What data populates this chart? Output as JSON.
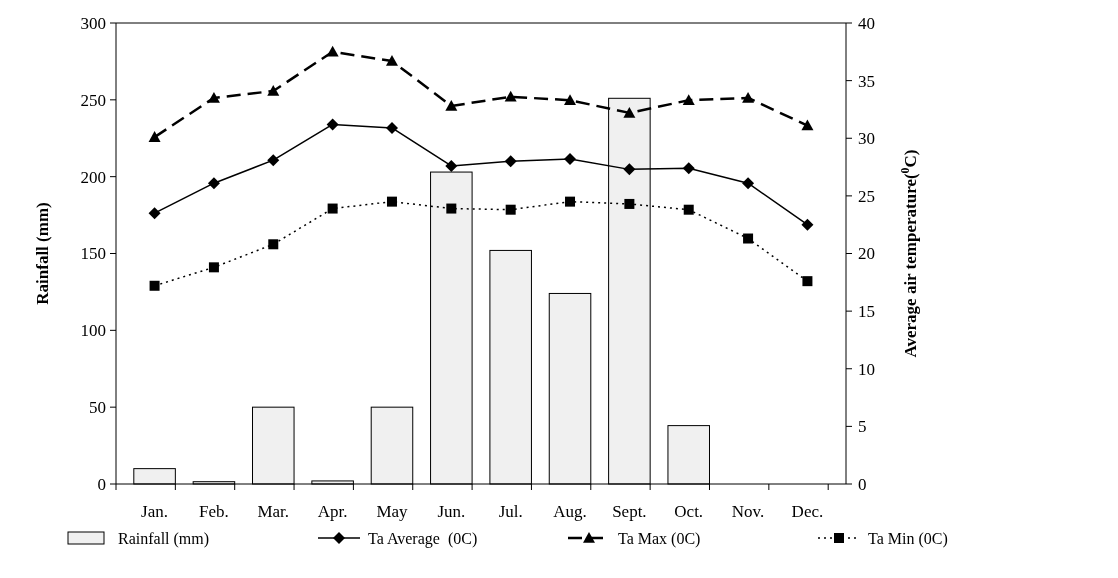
{
  "chart_data": {
    "type": "bar",
    "categories": [
      "Jan.",
      "Feb.",
      "Mar.",
      "Apr.",
      "May",
      "Jun.",
      "Jul.",
      "Aug.",
      "Sept.",
      "Oct.",
      "Nov.",
      "Dec."
    ],
    "ylabel": "Rainfall (mm)",
    "y2label": "Average air temperature($^{0}$C)",
    "ylim": [
      0,
      300
    ],
    "yticks": [
      0,
      50,
      100,
      150,
      200,
      250,
      300
    ],
    "y2lim": [
      0,
      40
    ],
    "y2ticks": [
      0,
      5,
      10,
      15,
      20,
      25,
      30,
      35,
      40
    ],
    "grid": false,
    "legend": "bottom",
    "series": [
      {
        "name": "Rainfall (mm)",
        "color": "#f0f0f0",
        "values": [
          10,
          1.5,
          50,
          2,
          50,
          203,
          152,
          124,
          251,
          38,
          0,
          0
        ]
      },
      {
        "name": "Ta Average  (0C)",
        "type": "line",
        "axis": "y2",
        "color": "#000000",
        "marker": "diamond",
        "line_style": "solid",
        "values": [
          23.5,
          26.1,
          28.1,
          31.2,
          30.9,
          27.6,
          28.0,
          28.2,
          27.3,
          27.4,
          26.1,
          22.5
        ]
      },
      {
        "name": "Ta Max (0C)",
        "type": "line",
        "axis": "y2",
        "color": "#000000",
        "marker": "triangle",
        "line_style": "dashed",
        "values": [
          30.1,
          33.5,
          34.1,
          37.5,
          36.7,
          32.8,
          33.6,
          33.3,
          32.2,
          33.3,
          33.5,
          31.1
        ]
      },
      {
        "name": "Ta Min (0C)",
        "type": "line",
        "axis": "y2",
        "color": "#000000",
        "marker": "square",
        "line_style": "dotted",
        "values": [
          17.2,
          18.8,
          20.8,
          23.9,
          24.5,
          23.9,
          23.8,
          24.5,
          24.3,
          23.8,
          21.3,
          17.6
        ]
      }
    ]
  }
}
